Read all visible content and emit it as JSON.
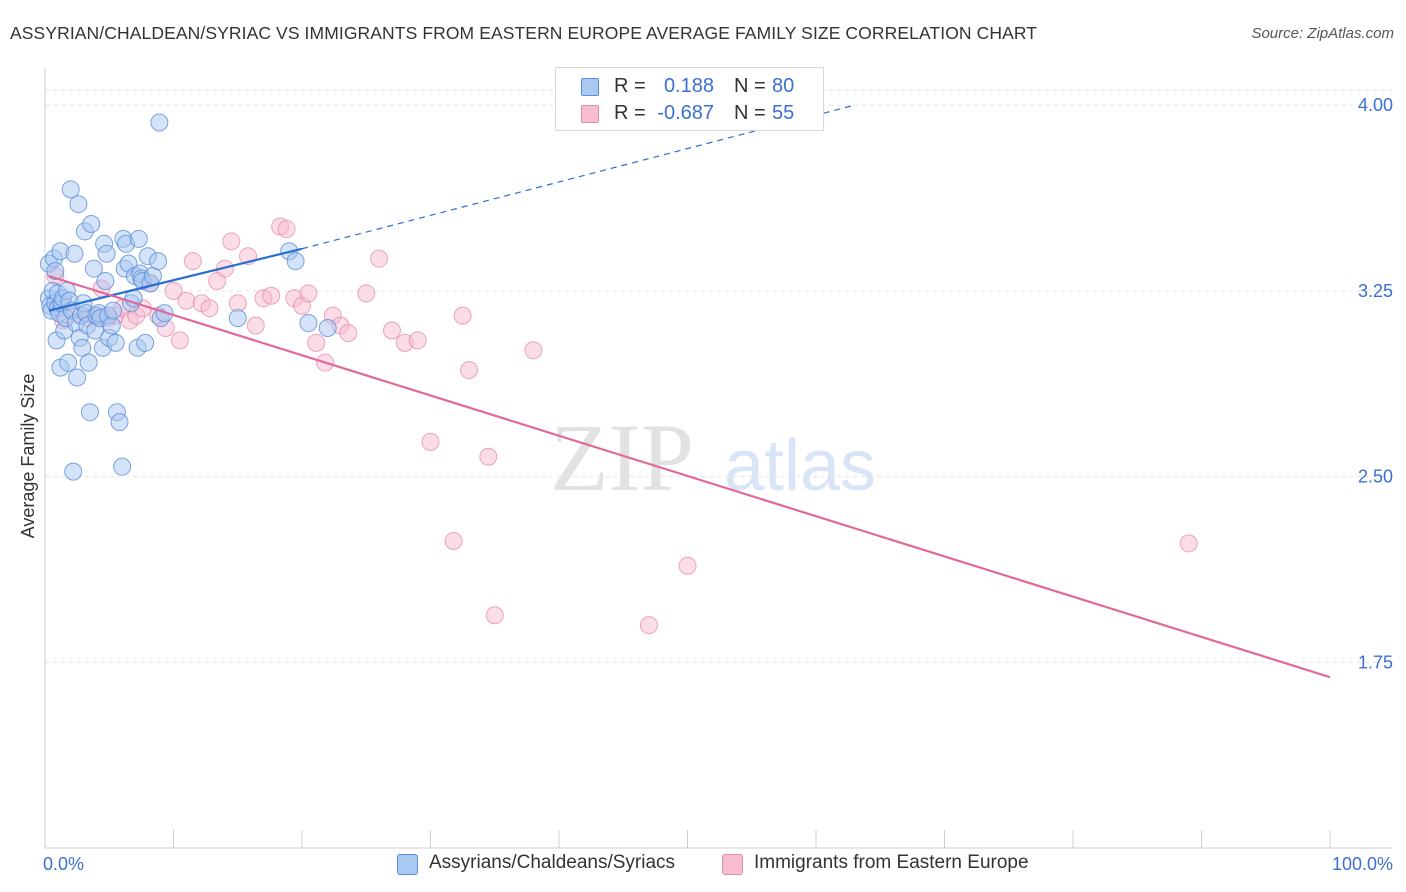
{
  "header": {
    "title": "ASSYRIAN/CHALDEAN/SYRIAC VS IMMIGRANTS FROM EASTERN EUROPE AVERAGE FAMILY SIZE CORRELATION CHART",
    "source": "Source: ZipAtlas.com"
  },
  "watermark": {
    "zip": "ZIP",
    "atlas": "atlas"
  },
  "legend": {
    "r_label": "R =",
    "n_label": "N =",
    "series": [
      {
        "name": "Assyrians/Chaldeans/Syriacs",
        "r": "0.188",
        "n": "80",
        "fill": "#a9c8f2",
        "stroke": "#5b8fd9"
      },
      {
        "name": "Immigrants from Eastern Europe",
        "r": "-0.687",
        "n": "55",
        "fill": "#f8bcd0",
        "stroke": "#e58aa8"
      }
    ]
  },
  "colors": {
    "blue_line": "#2a6fd0",
    "pink_line": "#e0699a",
    "axis_text": "#3b6fd4",
    "grid": "#e3e3e3"
  },
  "chart_data": {
    "type": "scatter",
    "title": "ASSYRIAN/CHALDEAN/SYRIAC VS IMMIGRANTS FROM EASTERN EUROPE AVERAGE FAMILY SIZE CORRELATION CHART",
    "xlabel": "",
    "ylabel": "Average Family Size",
    "xlim": [
      0,
      100
    ],
    "ylim": [
      1.0,
      4.15
    ],
    "x_tick_labels": [
      "0.0%",
      "100.0%"
    ],
    "y_ticks": [
      1.75,
      2.5,
      3.25,
      4.0
    ],
    "y_tick_labels": [
      "1.75",
      "2.50",
      "3.25",
      "4.00"
    ],
    "grid": true,
    "series": [
      {
        "name": "Assyrians/Chaldeans/Syriacs",
        "trend": {
          "x0": 0.3,
          "y0": 3.17,
          "x1": 20,
          "y1": 3.42,
          "dashed_to_x": 63,
          "dashed_to_y": 4.0
        },
        "points": [
          [
            0.3,
            3.36
          ],
          [
            0.3,
            3.22
          ],
          [
            0.4,
            3.19
          ],
          [
            0.5,
            3.17
          ],
          [
            0.6,
            3.25
          ],
          [
            0.7,
            3.38
          ],
          [
            0.8,
            3.33
          ],
          [
            0.8,
            3.2
          ],
          [
            0.9,
            3.05
          ],
          [
            1.0,
            3.18
          ],
          [
            1.0,
            3.24
          ],
          [
            1.1,
            3.16
          ],
          [
            1.2,
            3.41
          ],
          [
            1.2,
            2.94
          ],
          [
            1.3,
            3.2
          ],
          [
            1.4,
            3.22
          ],
          [
            1.5,
            3.09
          ],
          [
            1.6,
            3.14
          ],
          [
            1.7,
            3.25
          ],
          [
            1.8,
            2.96
          ],
          [
            1.9,
            3.21
          ],
          [
            2.0,
            3.66
          ],
          [
            2.1,
            3.17
          ],
          [
            2.2,
            2.52
          ],
          [
            2.3,
            3.4
          ],
          [
            2.4,
            3.12
          ],
          [
            2.5,
            2.9
          ],
          [
            2.6,
            3.6
          ],
          [
            2.7,
            3.06
          ],
          [
            2.8,
            3.15
          ],
          [
            2.9,
            3.02
          ],
          [
            3.0,
            3.2
          ],
          [
            3.1,
            3.49
          ],
          [
            3.2,
            3.16
          ],
          [
            3.3,
            3.11
          ],
          [
            3.4,
            2.96
          ],
          [
            3.5,
            2.76
          ],
          [
            3.6,
            3.52
          ],
          [
            3.8,
            3.34
          ],
          [
            3.9,
            3.09
          ],
          [
            4.0,
            3.15
          ],
          [
            4.2,
            3.16
          ],
          [
            4.3,
            3.14
          ],
          [
            4.5,
            3.02
          ],
          [
            4.6,
            3.44
          ],
          [
            4.7,
            3.29
          ],
          [
            4.8,
            3.4
          ],
          [
            4.9,
            3.15
          ],
          [
            5.0,
            3.06
          ],
          [
            5.2,
            3.11
          ],
          [
            5.3,
            3.17
          ],
          [
            5.5,
            3.04
          ],
          [
            5.6,
            2.76
          ],
          [
            5.8,
            2.72
          ],
          [
            6.0,
            2.54
          ],
          [
            6.1,
            3.46
          ],
          [
            6.2,
            3.34
          ],
          [
            6.3,
            3.44
          ],
          [
            6.5,
            3.36
          ],
          [
            6.7,
            3.2
          ],
          [
            6.9,
            3.22
          ],
          [
            7.0,
            3.31
          ],
          [
            7.2,
            3.02
          ],
          [
            7.3,
            3.46
          ],
          [
            7.4,
            3.32
          ],
          [
            7.5,
            3.3
          ],
          [
            7.6,
            3.29
          ],
          [
            7.8,
            3.04
          ],
          [
            8.0,
            3.39
          ],
          [
            8.2,
            3.28
          ],
          [
            8.4,
            3.31
          ],
          [
            8.8,
            3.37
          ],
          [
            9.0,
            3.14
          ],
          [
            9.3,
            3.16
          ],
          [
            15.0,
            3.14
          ],
          [
            19.0,
            3.41
          ],
          [
            19.5,
            3.37
          ],
          [
            20.5,
            3.12
          ],
          [
            22.0,
            3.1
          ],
          [
            8.9,
            3.93
          ]
        ]
      },
      {
        "name": "Immigrants from Eastern Europe",
        "trend": {
          "x0": 0.3,
          "y0": 3.31,
          "x1": 100,
          "y1": 1.69
        },
        "points": [
          [
            0.8,
            3.31
          ],
          [
            1.4,
            3.13
          ],
          [
            2.0,
            3.17
          ],
          [
            2.8,
            3.15
          ],
          [
            3.4,
            3.14
          ],
          [
            3.9,
            3.15
          ],
          [
            4.4,
            3.26
          ],
          [
            4.9,
            3.14
          ],
          [
            5.5,
            3.15
          ],
          [
            6.0,
            3.18
          ],
          [
            6.6,
            3.13
          ],
          [
            7.1,
            3.15
          ],
          [
            7.6,
            3.18
          ],
          [
            8.2,
            3.28
          ],
          [
            8.8,
            3.15
          ],
          [
            9.4,
            3.1
          ],
          [
            10.0,
            3.25
          ],
          [
            10.5,
            3.05
          ],
          [
            11.0,
            3.21
          ],
          [
            11.5,
            3.37
          ],
          [
            12.2,
            3.2
          ],
          [
            12.8,
            3.18
          ],
          [
            13.4,
            3.29
          ],
          [
            14.0,
            3.34
          ],
          [
            14.5,
            3.45
          ],
          [
            15.0,
            3.2
          ],
          [
            15.8,
            3.39
          ],
          [
            16.4,
            3.11
          ],
          [
            17.0,
            3.22
          ],
          [
            17.6,
            3.23
          ],
          [
            18.3,
            3.51
          ],
          [
            18.8,
            3.5
          ],
          [
            19.4,
            3.22
          ],
          [
            20.0,
            3.19
          ],
          [
            20.5,
            3.24
          ],
          [
            21.1,
            3.04
          ],
          [
            21.8,
            2.96
          ],
          [
            22.4,
            3.15
          ],
          [
            23.0,
            3.11
          ],
          [
            23.6,
            3.08
          ],
          [
            25.0,
            3.24
          ],
          [
            26.0,
            3.38
          ],
          [
            27.0,
            3.09
          ],
          [
            28.0,
            3.04
          ],
          [
            29.0,
            3.05
          ],
          [
            30.0,
            2.64
          ],
          [
            31.8,
            2.24
          ],
          [
            32.5,
            3.15
          ],
          [
            33.0,
            2.93
          ],
          [
            34.5,
            2.58
          ],
          [
            35.0,
            1.94
          ],
          [
            38.0,
            3.01
          ],
          [
            47.0,
            1.9
          ],
          [
            50.0,
            2.14
          ],
          [
            89.0,
            2.23
          ]
        ]
      }
    ]
  }
}
